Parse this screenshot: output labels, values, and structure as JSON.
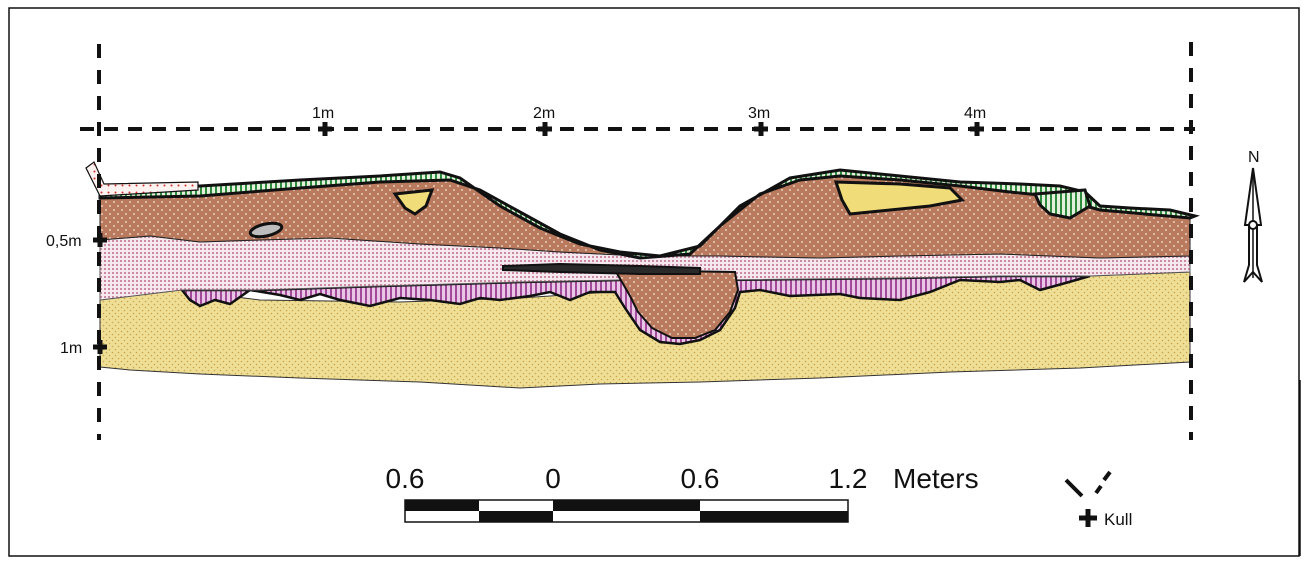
{
  "profile": {
    "horizontal_marks": [
      "1m",
      "2m",
      "3m",
      "4m"
    ],
    "depth_marks": [
      "0,5m",
      "1m"
    ]
  },
  "north_arrow": {
    "label": "N"
  },
  "scale_bar": {
    "labels": [
      "0.6",
      "0",
      "0.6",
      "1.2"
    ],
    "unit": "Meters"
  },
  "legend": {
    "label": "Kull"
  },
  "colors": {
    "brown_soil": "#b97a5e",
    "pink_layer": "#ecd3dc",
    "purple_layer": "#c78bc3",
    "sand": "#efdf96",
    "sand_dots": "#c9a44a",
    "grass": "#2e8b3e",
    "grass_light": "#cfe8c8",
    "yellow_lens": "#f1dc7a",
    "outline": "#111111"
  }
}
